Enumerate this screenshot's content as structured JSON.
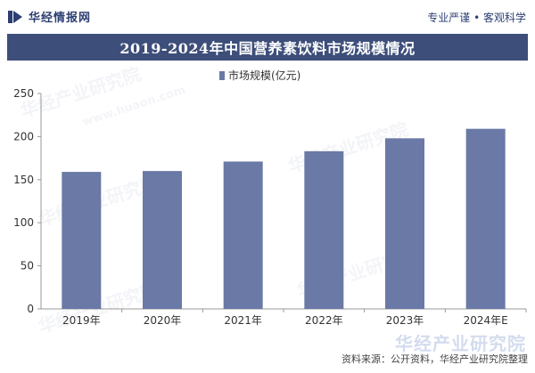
{
  "header": {
    "logo_text": "华经情报网",
    "tagline": "专业严谨 • 客观科学"
  },
  "title": "2019-2024年中国营养素饮料市场规模情况",
  "legend_label": "市场规模(亿元)",
  "watermark_text": "华经产业研究院",
  "watermark_url": "www.huaon.com",
  "footer": {
    "source": "资料来源：公开资料，华经产业研究院整理",
    "brand": "华经产业研究院"
  },
  "colors": {
    "bar": "#6a79a6",
    "title_bg": "#3d4e7a",
    "brand": "#2c3e72"
  },
  "chart_data": {
    "type": "bar",
    "title": "2019-2024年中国营养素饮料市场规模情况",
    "categories": [
      "2019年",
      "2020年",
      "2021年",
      "2022年",
      "2023年",
      "2024年E"
    ],
    "series": [
      {
        "name": "市场规模(亿元)",
        "values": [
          159,
          160,
          171,
          183,
          198,
          209
        ]
      }
    ],
    "ylim": [
      0,
      250
    ],
    "yticks": [
      0,
      50,
      100,
      150,
      200,
      250
    ],
    "grid": false,
    "legend": "top-center"
  }
}
